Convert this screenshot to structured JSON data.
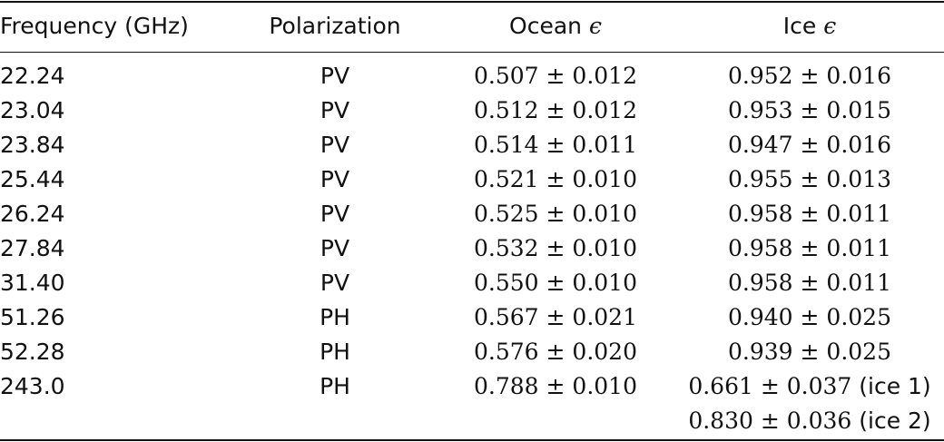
{
  "table": {
    "headers": {
      "frequency": "Frequency (GHz)",
      "polarization": "Polarization",
      "ocean_label": "Ocean",
      "ocean_symbol": "ϵ",
      "ice_label": "Ice",
      "ice_symbol": "ϵ"
    },
    "rows": [
      {
        "frequency": "22.24",
        "polarization": "PV",
        "ocean": "0.507 ± 0.012",
        "ice": "0.952 ± 0.016",
        "ice_note": ""
      },
      {
        "frequency": "23.04",
        "polarization": "PV",
        "ocean": "0.512 ± 0.012",
        "ice": "0.953 ± 0.015",
        "ice_note": ""
      },
      {
        "frequency": "23.84",
        "polarization": "PV",
        "ocean": "0.514 ± 0.011",
        "ice": "0.947 ± 0.016",
        "ice_note": ""
      },
      {
        "frequency": "25.44",
        "polarization": "PV",
        "ocean": "0.521 ± 0.010",
        "ice": "0.955 ± 0.013",
        "ice_note": ""
      },
      {
        "frequency": "26.24",
        "polarization": "PV",
        "ocean": "0.525 ± 0.010",
        "ice": "0.958 ± 0.011",
        "ice_note": ""
      },
      {
        "frequency": "27.84",
        "polarization": "PV",
        "ocean": "0.532 ± 0.010",
        "ice": "0.958 ± 0.011",
        "ice_note": ""
      },
      {
        "frequency": "31.40",
        "polarization": "PV",
        "ocean": "0.550 ± 0.010",
        "ice": "0.958 ± 0.011",
        "ice_note": ""
      },
      {
        "frequency": "51.26",
        "polarization": "PH",
        "ocean": "0.567 ± 0.021",
        "ice": "0.940 ± 0.025",
        "ice_note": ""
      },
      {
        "frequency": "52.28",
        "polarization": "PH",
        "ocean": "0.576 ± 0.020",
        "ice": "0.939 ± 0.025",
        "ice_note": ""
      },
      {
        "frequency": "243.0",
        "polarization": "PH",
        "ocean": "0.788 ± 0.010",
        "ice": "0.661 ± 0.037",
        "ice_note": "(ice 1)"
      },
      {
        "frequency": "",
        "polarization": "",
        "ocean": "",
        "ice": "0.830 ± 0.036",
        "ice_note": "(ice 2)"
      }
    ]
  }
}
